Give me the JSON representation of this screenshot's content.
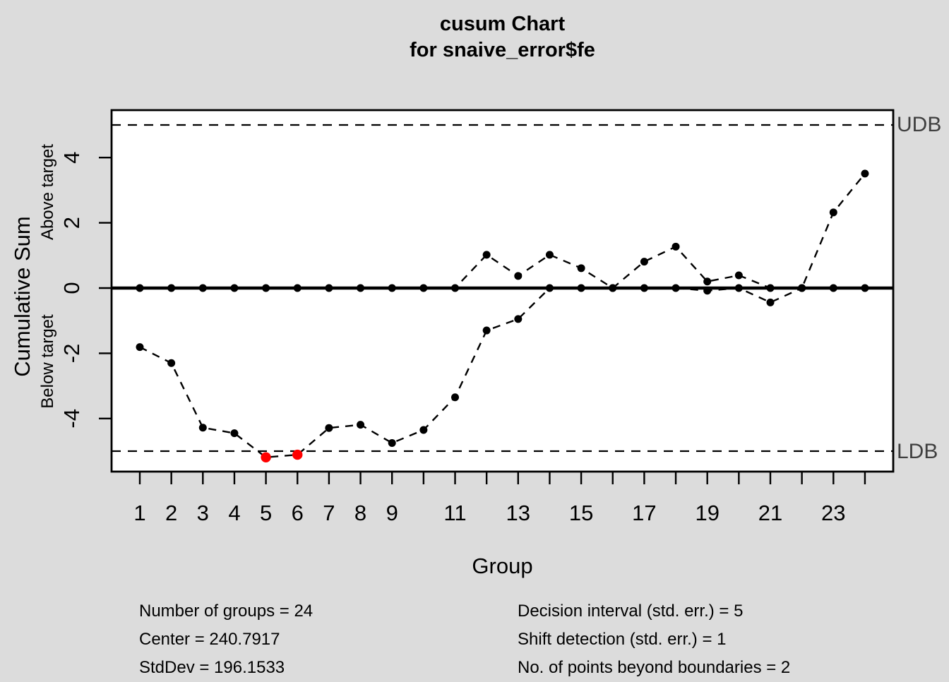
{
  "title": {
    "line1": "cusum Chart",
    "line2": "for snaive_error$fe"
  },
  "axes": {
    "x_label": "Group",
    "y_label": "Cumulative Sum",
    "y_sub_above": "Above target",
    "y_sub_below": "Below target",
    "y_ticks": [
      -4,
      -2,
      0,
      2,
      4
    ],
    "x_tick_groups_all": [
      1,
      2,
      3,
      4,
      5,
      6,
      7,
      8,
      9,
      10,
      11,
      12,
      13,
      14,
      15,
      16,
      17,
      18,
      19,
      20,
      21,
      22,
      23,
      24
    ],
    "x_labeled_groups": [
      1,
      2,
      3,
      4,
      5,
      6,
      7,
      8,
      9,
      11,
      13,
      15,
      17,
      19,
      21,
      23
    ],
    "x_labels": [
      "1",
      "2",
      "3",
      "4",
      "5",
      "6",
      "7",
      "8",
      "9",
      "11",
      "13",
      "15",
      "17",
      "19",
      "21",
      "23"
    ]
  },
  "boundaries": {
    "upper_label": "UDB",
    "lower_label": "LDB",
    "upper_value": 5,
    "lower_value": -5
  },
  "chart_data": {
    "type": "line",
    "title": "cusum Chart for snaive_error$fe",
    "xlabel": "Group",
    "ylabel": "Cumulative Sum",
    "x": [
      1,
      2,
      3,
      4,
      5,
      6,
      7,
      8,
      9,
      10,
      11,
      12,
      13,
      14,
      15,
      16,
      17,
      18,
      19,
      20,
      21,
      22,
      23,
      24
    ],
    "series": [
      {
        "name": "above_target",
        "values": [
          0,
          0,
          0,
          0,
          0,
          0,
          0,
          0,
          0,
          0,
          0,
          1.02,
          0.37,
          1.02,
          0.61,
          0,
          0.81,
          1.27,
          0.2,
          0.39,
          0,
          0,
          2.32,
          3.51
        ]
      },
      {
        "name": "below_target",
        "values": [
          -1.81,
          -2.3,
          -4.28,
          -4.45,
          -5.19,
          -5.11,
          -4.29,
          -4.19,
          -4.75,
          -4.35,
          -3.35,
          -1.3,
          -0.95,
          0,
          0,
          0,
          0,
          0,
          -0.08,
          0,
          -0.44,
          0,
          0,
          0
        ]
      }
    ],
    "center_value": 0,
    "decision_interval_upper": 5,
    "decision_interval_lower": -5,
    "violations": {
      "series": "below_target",
      "groups": [
        5,
        6
      ]
    },
    "ylim": [
      -5.6,
      5.5
    ],
    "grid": false,
    "legend": "none"
  },
  "stats": {
    "left": [
      "Number of groups = 24",
      "Center = 240.7917",
      "StdDev = 196.1533"
    ],
    "right": [
      "Decision interval (std. err.) = 5",
      "Shift detection (std. err.) = 1",
      "No. of points beyond boundaries = 2"
    ]
  },
  "colors": {
    "background": "#dcdcdc",
    "plot_background": "#ffffff",
    "line": "#000000",
    "violation_point": "#ff0000",
    "boundary_label_text": "#3f3f3f"
  }
}
